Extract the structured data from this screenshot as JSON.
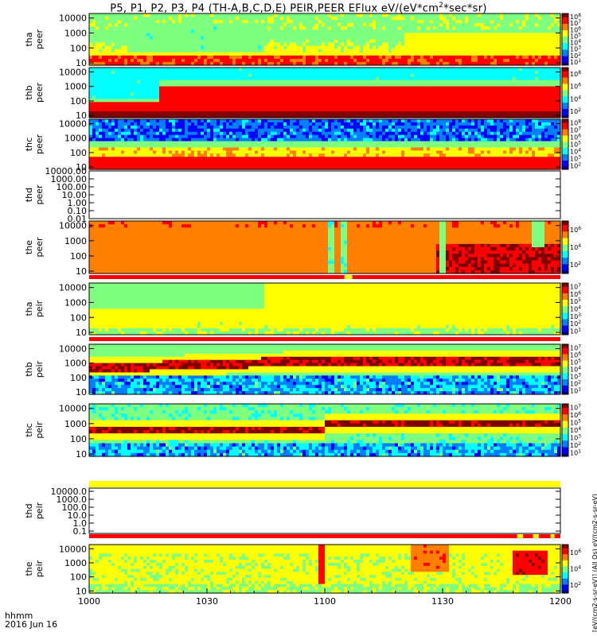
{
  "chart_data": {
    "type": "heatmap",
    "title_parts": [
      "P5, P1, P2, P3, P4 (TH-A,B,C,D,E) PEIR,PEER EFlux eV/(eV*cm",
      "2",
      "*sec*sr)"
    ],
    "x_axis": {
      "tick_labels": [
        "1000",
        "1030",
        "1100",
        "1130",
        "1200"
      ],
      "xlim": [
        0,
        120
      ],
      "ticks": [
        0,
        30,
        60,
        90,
        120
      ],
      "label_line1": "hhmm",
      "label_line2": "2016 Jun 16"
    },
    "panels": [
      {
        "id": "tha-peer",
        "probe": "tha",
        "species": "peer",
        "log_y": true,
        "ylim": [
          7,
          20000
        ],
        "yticks": [
          "10",
          "100",
          "1000",
          "10000"
        ],
        "yvals": [
          10,
          100,
          1000,
          10000
        ],
        "pattern": "tha_peer",
        "cb_ticks": [
          "10",
          "10",
          "10",
          "10",
          "10",
          "10",
          "10",
          "10"
        ],
        "cb_exps": [
          "1",
          "2",
          "3",
          "4",
          "5",
          "6",
          "7",
          "8"
        ]
      },
      {
        "id": "thb-peer",
        "probe": "thb",
        "species": "peer",
        "log_y": true,
        "ylim": [
          7,
          20000
        ],
        "yticks": [
          "10",
          "100",
          "1000",
          "10000"
        ],
        "yvals": [
          10,
          100,
          1000,
          10000
        ],
        "pattern": "thb_peer",
        "cb_ticks": [
          "10",
          "10",
          "10",
          "10"
        ],
        "cb_exps": [
          "2",
          "4",
          "6",
          "8"
        ]
      },
      {
        "id": "thc-peer",
        "probe": "thc",
        "species": "peer",
        "log_y": true,
        "ylim": [
          7,
          20000
        ],
        "yticks": [
          "10",
          "100",
          "1000",
          "10000"
        ],
        "yvals": [
          10,
          100,
          1000,
          10000
        ],
        "pattern": "thc_peer",
        "cb_ticks": [
          "10",
          "10",
          "10",
          "10",
          "10",
          "10",
          "10"
        ],
        "cb_exps": [
          "2",
          "3",
          "4",
          "5",
          "6",
          "7",
          "8"
        ]
      },
      {
        "id": "thd-peer",
        "probe": "thd",
        "species": "peer",
        "log_y": true,
        "ylim": [
          0.01,
          10000
        ],
        "yticks": [
          "0.01",
          "0.10",
          "1.00",
          "10.00",
          "100.00",
          "1000.00",
          "10000.00"
        ],
        "yvals": [
          0.01,
          0.1,
          1,
          10,
          100,
          1000,
          10000
        ],
        "pattern": "empty",
        "cb_ticks": [],
        "cb_exps": []
      },
      {
        "id": "the-peer",
        "probe": "the",
        "species": "peer",
        "log_y": true,
        "ylim": [
          7,
          20000
        ],
        "yticks": [
          "10",
          "100",
          "1000",
          "10000"
        ],
        "yvals": [
          10,
          100,
          1000,
          10000
        ],
        "pattern": "the_peer",
        "cb_ticks": [
          "10",
          "10",
          "10"
        ],
        "cb_exps": [
          "2",
          "4",
          "6"
        ]
      },
      {
        "id": "tha-peir",
        "probe": "tha",
        "species": "peir",
        "log_y": true,
        "ylim": [
          7,
          20000
        ],
        "yticks": [
          "10",
          "100",
          "1000",
          "10000"
        ],
        "yvals": [
          10,
          100,
          1000,
          10000
        ],
        "pattern": "tha_peir",
        "cb_ticks": [
          "10",
          "10",
          "10",
          "10",
          "10",
          "10",
          "10"
        ],
        "cb_exps": [
          "1",
          "2",
          "3",
          "4",
          "5",
          "6",
          "7"
        ]
      },
      {
        "id": "thb-peir",
        "probe": "thb",
        "species": "peir",
        "log_y": true,
        "ylim": [
          7,
          20000
        ],
        "yticks": [
          "10",
          "100",
          "1000",
          "10000"
        ],
        "yvals": [
          10,
          100,
          1000,
          10000
        ],
        "pattern": "thb_peir",
        "cb_ticks": [
          "10",
          "10",
          "10",
          "10",
          "10",
          "10",
          "10"
        ],
        "cb_exps": [
          "1",
          "2",
          "3",
          "4",
          "5",
          "6",
          "7"
        ]
      },
      {
        "id": "thc-peir",
        "probe": "thc",
        "species": "peir",
        "log_y": true,
        "ylim": [
          7,
          20000
        ],
        "yticks": [
          "10",
          "100",
          "1000",
          "10000"
        ],
        "yvals": [
          10,
          100,
          1000,
          10000
        ],
        "pattern": "thc_peir",
        "cb_ticks": [
          "10",
          "10",
          "10",
          "10",
          "10",
          "10",
          "10"
        ],
        "cb_exps": [
          "1",
          "2",
          "3",
          "4",
          "5",
          "6",
          "7"
        ]
      },
      {
        "id": "thd-peir",
        "probe": "thd",
        "species": "peir",
        "log_y": true,
        "ylim": [
          0.05,
          25000
        ],
        "yticks": [
          "0.1",
          "1.0",
          "10.0",
          "100.0",
          "1000.0",
          "10000.0"
        ],
        "yvals": [
          0.1,
          1,
          10,
          100,
          1000,
          10000
        ],
        "pattern": "empty",
        "cb_ticks": [],
        "cb_exps": []
      },
      {
        "id": "the-peir",
        "probe": "the",
        "species": "peir",
        "log_y": true,
        "ylim": [
          7,
          20000
        ],
        "yticks": [
          "10",
          "100",
          "1000",
          "10000"
        ],
        "yvals": [
          10,
          100,
          1000,
          10000
        ],
        "pattern": "the_peir",
        "cb_ticks": [
          "10",
          "10",
          "10"
        ],
        "cb_exps": [
          "2",
          "4",
          "6"
        ]
      }
    ],
    "status_bars": [
      {
        "id": "bar-the-peer",
        "after_panel": "the-peer",
        "color": "#ff0000",
        "segments": [
          {
            "t0": 65,
            "t1": 67,
            "color": "#ffff00"
          }
        ]
      },
      {
        "id": "bar-tha-peir",
        "after_panel": "tha-peir",
        "color": "#ff0000",
        "segments": []
      },
      {
        "id": "bar-thc-peir",
        "after_panel": "thc-peir",
        "color": "#ffff00",
        "segments": []
      },
      {
        "id": "bar-thd-peir",
        "after_panel": "thd-peir",
        "color": "#ff0000",
        "segments": [
          {
            "t0": 109,
            "t1": 110.5,
            "color": "#ffff00"
          },
          {
            "t0": 113,
            "t1": 114.5,
            "color": "#ffff00"
          },
          {
            "t0": 117.5,
            "t1": 118.5,
            "color": "#ffff00"
          }
        ]
      }
    ],
    "colormap": [
      "#00007f",
      "#0000ff",
      "#007fff",
      "#00ffff",
      "#7fff7f",
      "#ffff00",
      "#ff7f00",
      "#ff0000",
      "#7f0000"
    ],
    "side_labels": "[eV/(cm2-s-sr-eV)] (All Qs) eV/(cm2-s-sr-eV)"
  }
}
